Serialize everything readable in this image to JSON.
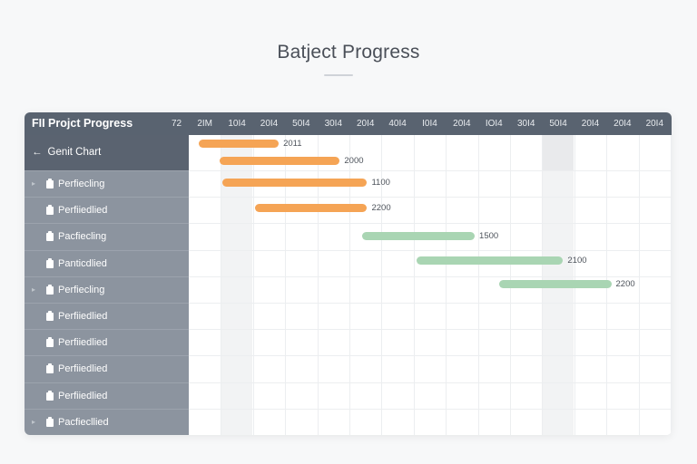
{
  "page": {
    "title": "Batject Progress"
  },
  "header": {
    "title": "FII Projct Progress",
    "columns": [
      "72",
      "2IM",
      "10I4",
      "20I4",
      "50I4",
      "30I4",
      "20I4",
      "40I4",
      "I0I4",
      "20I4",
      "IOI4",
      "30I4",
      "50I4",
      "20I4",
      "20I4",
      "20I4"
    ]
  },
  "sidebar": {
    "back_arrow": "←",
    "title": "Genit Chart",
    "rows": [
      {
        "label": "Perfiecling",
        "expandable": true
      },
      {
        "label": "Perfiiedlied",
        "expandable": false
      },
      {
        "label": "Pacfiecling",
        "expandable": false
      },
      {
        "label": "Panticdlied",
        "expandable": false
      },
      {
        "label": "Perfiecling",
        "expandable": true
      },
      {
        "label": "Perfiiedlied",
        "expandable": false
      },
      {
        "label": "Perfiiedlied",
        "expandable": false
      },
      {
        "label": "Perfiiedlied",
        "expandable": false
      },
      {
        "label": "Perfiiedlied",
        "expandable": false
      },
      {
        "label": "Pacfiecllied",
        "expandable": true
      }
    ]
  },
  "chart_data": {
    "type": "gantt",
    "colors": {
      "orange": "#f5a455",
      "green": "#a9d5b3"
    },
    "column_count": 15,
    "bars": [
      {
        "start": 0.3,
        "end": 2.8,
        "label": "2011",
        "color": "orange"
      },
      {
        "start": 0.95,
        "end": 4.7,
        "label": "2000",
        "color": "orange"
      },
      {
        "start": 1.05,
        "end": 5.55,
        "label": "1100",
        "color": "orange"
      },
      {
        "start": 2.05,
        "end": 5.55,
        "label": "2200",
        "color": "orange"
      },
      {
        "start": 5.4,
        "end": 8.9,
        "label": "1500",
        "color": "green"
      },
      {
        "start": 7.1,
        "end": 11.65,
        "label": "2100",
        "color": "green"
      },
      {
        "start": 9.65,
        "end": 13.15,
        "label": "2200",
        "color": "green"
      }
    ]
  }
}
